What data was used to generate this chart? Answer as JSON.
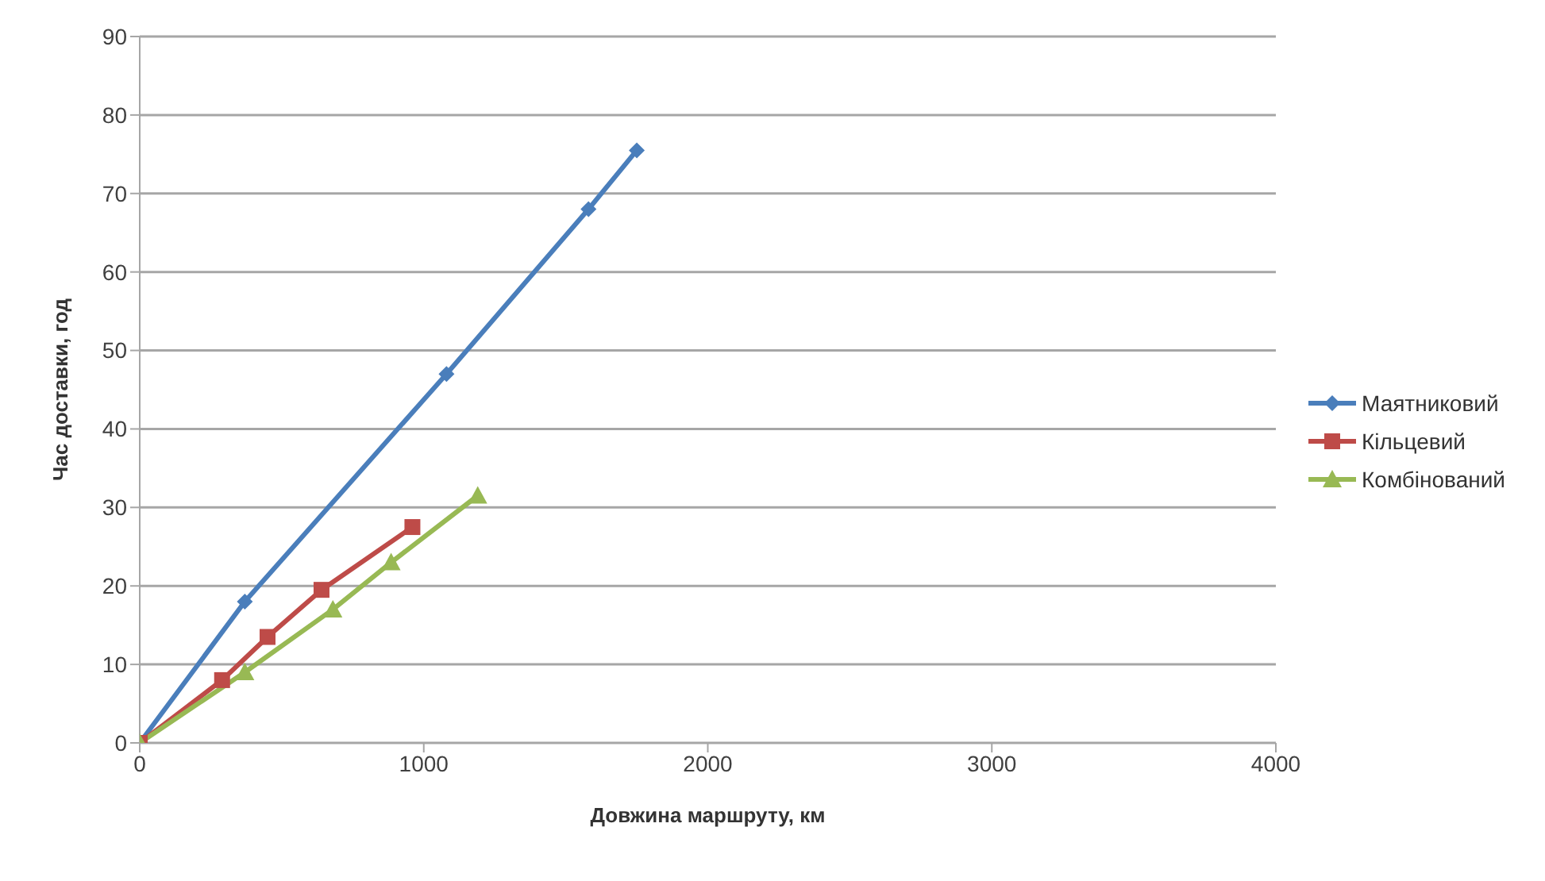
{
  "chart_data": {
    "type": "line",
    "xlabel": "Довжина маршруту, км",
    "ylabel": "Час доставки, год",
    "xlim": [
      0,
      4000
    ],
    "xticks": [
      0,
      1000,
      2000,
      3000,
      4000
    ],
    "ylim": [
      0,
      90
    ],
    "yticks": [
      0,
      10,
      20,
      30,
      40,
      50,
      60,
      70,
      80,
      90
    ],
    "grid": "y",
    "legend": "right",
    "series": [
      {
        "name": "Маятниковий",
        "color": "#4a7ebb",
        "marker": "diamond",
        "x": [
          0,
          370,
          1080,
          1580,
          1750
        ],
        "values": [
          0,
          18,
          47,
          68,
          75.5
        ]
      },
      {
        "name": "Кільцевий",
        "color": "#be4b48",
        "marker": "square",
        "x": [
          0,
          290,
          450,
          640,
          960
        ],
        "values": [
          0,
          8,
          13.5,
          19.5,
          27.5
        ]
      },
      {
        "name": "Комбінований",
        "color": "#98b954",
        "marker": "triangle",
        "x": [
          0,
          370,
          680,
          885,
          1190
        ],
        "values": [
          0,
          9,
          17,
          23,
          31.5
        ]
      }
    ]
  }
}
